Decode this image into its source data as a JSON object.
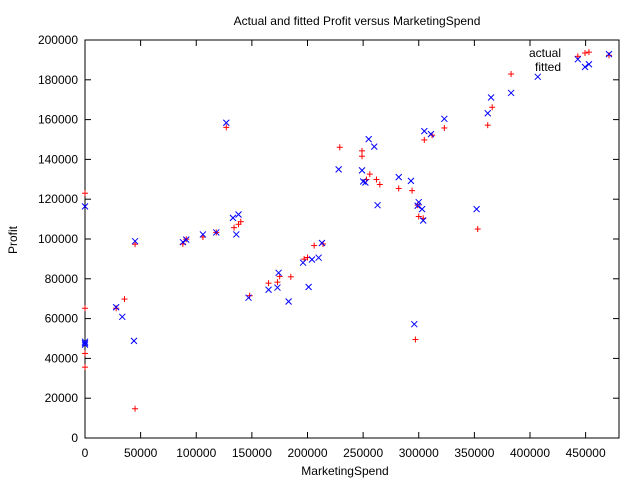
{
  "chart_data": {
    "type": "scatter",
    "title": "Actual and fitted Profit versus MarketingSpend",
    "xlabel": "MarketingSpend",
    "ylabel": "Profit",
    "xlim": [
      0,
      480000
    ],
    "ylim": [
      0,
      200000
    ],
    "xticks": [
      0,
      50000,
      100000,
      150000,
      200000,
      250000,
      300000,
      350000,
      400000,
      450000
    ],
    "yticks": [
      0,
      20000,
      40000,
      60000,
      80000,
      100000,
      120000,
      140000,
      160000,
      180000,
      200000
    ],
    "grid": false,
    "legend_position": "top-right",
    "series": [
      {
        "name": "actual",
        "marker": "plus",
        "color": "#ff0000",
        "points": [
          [
            0,
            123000
          ],
          [
            0,
            65200
          ],
          [
            0,
            42500
          ],
          [
            0,
            35600
          ],
          [
            28000,
            65200
          ],
          [
            35500,
            69800
          ],
          [
            45000,
            97400
          ],
          [
            45000,
            14700
          ],
          [
            88000,
            97500
          ],
          [
            91000,
            99900
          ],
          [
            106000,
            101000
          ],
          [
            118000,
            103300
          ],
          [
            127000,
            156100
          ],
          [
            134000,
            105700
          ],
          [
            138000,
            107400
          ],
          [
            140000,
            108700
          ],
          [
            148000,
            71500
          ],
          [
            165000,
            77800
          ],
          [
            173000,
            78300
          ],
          [
            175000,
            81200
          ],
          [
            185000,
            81000
          ],
          [
            197000,
            89900
          ],
          [
            200000,
            90700
          ],
          [
            206000,
            96700
          ],
          [
            214000,
            97500
          ],
          [
            229000,
            146100
          ],
          [
            249000,
            141600
          ],
          [
            249000,
            144300
          ],
          [
            253000,
            129900
          ],
          [
            256000,
            132600
          ],
          [
            262000,
            129900
          ],
          [
            265000,
            127400
          ],
          [
            282000,
            125400
          ],
          [
            294000,
            124300
          ],
          [
            297000,
            49500
          ],
          [
            299000,
            117000
          ],
          [
            300000,
            111300
          ],
          [
            304000,
            110400
          ],
          [
            305000,
            149800
          ],
          [
            312000,
            152200
          ],
          [
            323000,
            155800
          ],
          [
            353000,
            105000
          ],
          [
            362000,
            157200
          ],
          [
            366000,
            166200
          ],
          [
            383000,
            182900
          ],
          [
            443000,
            191800
          ],
          [
            453000,
            193900
          ],
          [
            471000,
            192300
          ]
        ]
      },
      {
        "name": "fitted",
        "marker": "cross",
        "color": "#0000ff",
        "points": [
          [
            0,
            116400
          ],
          [
            0,
            48400
          ],
          [
            0,
            46900
          ],
          [
            0,
            47600
          ],
          [
            28000,
            65700
          ],
          [
            33500,
            60900
          ],
          [
            44000,
            48800
          ],
          [
            45000,
            98900
          ],
          [
            88000,
            98400
          ],
          [
            91000,
            99700
          ],
          [
            106000,
            102300
          ],
          [
            118000,
            103300
          ],
          [
            127000,
            158400
          ],
          [
            133000,
            110600
          ],
          [
            136000,
            102300
          ],
          [
            138000,
            112300
          ],
          [
            147000,
            70500
          ],
          [
            165000,
            74500
          ],
          [
            173000,
            75600
          ],
          [
            174000,
            83000
          ],
          [
            183000,
            68600
          ],
          [
            196000,
            88100
          ],
          [
            201000,
            75900
          ],
          [
            204000,
            89700
          ],
          [
            210000,
            90600
          ],
          [
            213000,
            98000
          ],
          [
            228000,
            135000
          ],
          [
            249000,
            134500
          ],
          [
            250000,
            128900
          ],
          [
            252000,
            128400
          ],
          [
            255000,
            150200
          ],
          [
            260000,
            146400
          ],
          [
            263000,
            117000
          ],
          [
            282000,
            131100
          ],
          [
            293000,
            129200
          ],
          [
            296000,
            57200
          ],
          [
            299000,
            116700
          ],
          [
            300000,
            118500
          ],
          [
            303000,
            115000
          ],
          [
            304000,
            109300
          ],
          [
            305000,
            154200
          ],
          [
            311000,
            152700
          ],
          [
            323000,
            160400
          ],
          [
            352000,
            115000
          ],
          [
            362000,
            163200
          ],
          [
            365000,
            171100
          ],
          [
            383000,
            173400
          ],
          [
            407000,
            181500
          ],
          [
            443000,
            190300
          ],
          [
            453000,
            187800
          ],
          [
            471000,
            192900
          ]
        ]
      }
    ]
  }
}
